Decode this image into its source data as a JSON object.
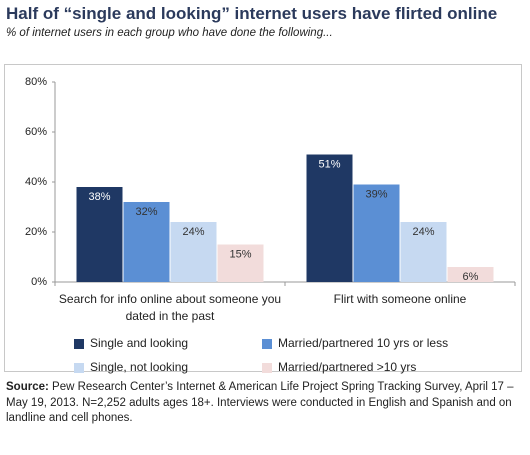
{
  "chart_data": {
    "type": "bar",
    "title": "Half of “single and looking” internet users have flirted online",
    "subtitle": "% of internet users in each group who have done the following...",
    "categories": [
      "Search for info online about someone you dated in the past",
      "Flirt with someone online"
    ],
    "series": [
      {
        "name": "Single and looking",
        "color": "#1f3864",
        "values": [
          38,
          51
        ],
        "value_labels": [
          "38%",
          "51%"
        ]
      },
      {
        "name": "Married/partnered 10 yrs or less",
        "color": "#5b8fd4",
        "values": [
          32,
          39
        ],
        "value_labels": [
          "32%",
          "39%"
        ]
      },
      {
        "name": "Single, not looking",
        "color": "#c6d9f1",
        "values": [
          24,
          24
        ],
        "value_labels": [
          "24%",
          "24%"
        ]
      },
      {
        "name": "Married/partnered >10 yrs",
        "color": "#f2dcdb",
        "values": [
          15,
          6
        ],
        "value_labels": [
          "15%",
          "6%"
        ]
      }
    ],
    "ylim": [
      0,
      80
    ],
    "yticks": [
      {
        "value": 0,
        "label": "0%"
      },
      {
        "value": 20,
        "label": "20%"
      },
      {
        "value": 40,
        "label": "40%"
      },
      {
        "value": 60,
        "label": "60%"
      },
      {
        "value": 80,
        "label": "80%"
      }
    ],
    "source_label": "Source:",
    "source": "Pew Research Center’s Internet & American Life Project Spring Tracking Survey, April 17 – May 19, 2013. N=2,252 adults ages 18+. Interviews were conducted in English and Spanish and on landline and cell phones."
  }
}
